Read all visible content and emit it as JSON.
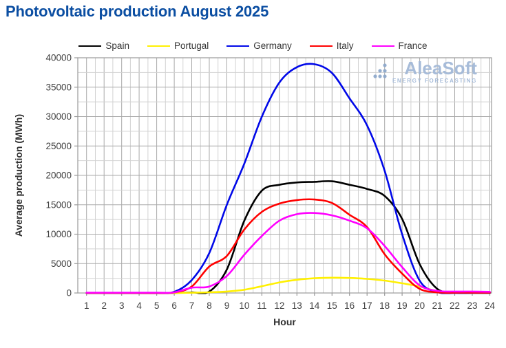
{
  "title_color": "#0B4EA2",
  "watermark": {
    "name": "AleaSoft",
    "tagline": "ENERGY FORECASTING",
    "color": "#A3B9D8",
    "dot_color": "#8FA9CC"
  },
  "axes": {
    "tick_label_color": "#404040",
    "axis_title_color": "#303030",
    "grid_minor_color": "#D2D2D2",
    "grid_major_color": "#A9A9A9",
    "border_color": "#9A9A9A"
  },
  "chart_data": {
    "type": "line",
    "title": "Photovoltaic production August 2025",
    "xlabel": "Hour",
    "ylabel": "Average production (MWh)",
    "x": [
      1,
      2,
      3,
      4,
      5,
      6,
      7,
      8,
      9,
      10,
      11,
      12,
      13,
      14,
      15,
      16,
      17,
      18,
      19,
      20,
      21,
      22,
      23,
      24
    ],
    "x_ticks": [
      1,
      2,
      3,
      4,
      5,
      6,
      7,
      8,
      9,
      10,
      11,
      12,
      13,
      14,
      15,
      16,
      17,
      18,
      19,
      20,
      21,
      22,
      23,
      24
    ],
    "y_ticks": [
      0,
      5000,
      10000,
      15000,
      20000,
      25000,
      30000,
      35000,
      40000
    ],
    "xlim": [
      0.5,
      24.1
    ],
    "ylim": [
      0,
      40000
    ],
    "x_minor_step": 0.5,
    "y_minor_step": 2500,
    "grid": true,
    "legend_position": "top",
    "series": [
      {
        "name": "Spain",
        "color": "#000000",
        "values": [
          0,
          0,
          0,
          0,
          0,
          0,
          100,
          250,
          4000,
          12300,
          17400,
          18400,
          18800,
          18900,
          19000,
          18400,
          17700,
          16500,
          12600,
          4900,
          700,
          150,
          150,
          100
        ]
      },
      {
        "name": "Portugal",
        "color": "#FFF000",
        "values": [
          0,
          0,
          0,
          0,
          0,
          0,
          50,
          120,
          250,
          550,
          1150,
          1800,
          2250,
          2500,
          2600,
          2550,
          2400,
          2100,
          1650,
          1100,
          300,
          50,
          0,
          0
        ]
      },
      {
        "name": "Germany",
        "color": "#0008E8",
        "values": [
          0,
          0,
          0,
          0,
          0,
          200,
          2200,
          6800,
          15000,
          22000,
          30000,
          35800,
          38400,
          38900,
          37400,
          33100,
          28500,
          20800,
          10000,
          2100,
          150,
          0,
          0,
          0
        ]
      },
      {
        "name": "Italy",
        "color": "#FF0000",
        "values": [
          0,
          0,
          0,
          0,
          0,
          100,
          1100,
          4500,
          6300,
          10800,
          13800,
          15200,
          15800,
          15900,
          15300,
          13300,
          11200,
          6600,
          3300,
          700,
          100,
          50,
          50,
          50
        ]
      },
      {
        "name": "France",
        "color": "#FF00FF",
        "values": [
          50,
          50,
          50,
          50,
          50,
          100,
          900,
          1100,
          2900,
          6500,
          9700,
          12300,
          13400,
          13600,
          13200,
          12300,
          11000,
          8000,
          4400,
          1300,
          350,
          250,
          250,
          200
        ]
      }
    ]
  }
}
